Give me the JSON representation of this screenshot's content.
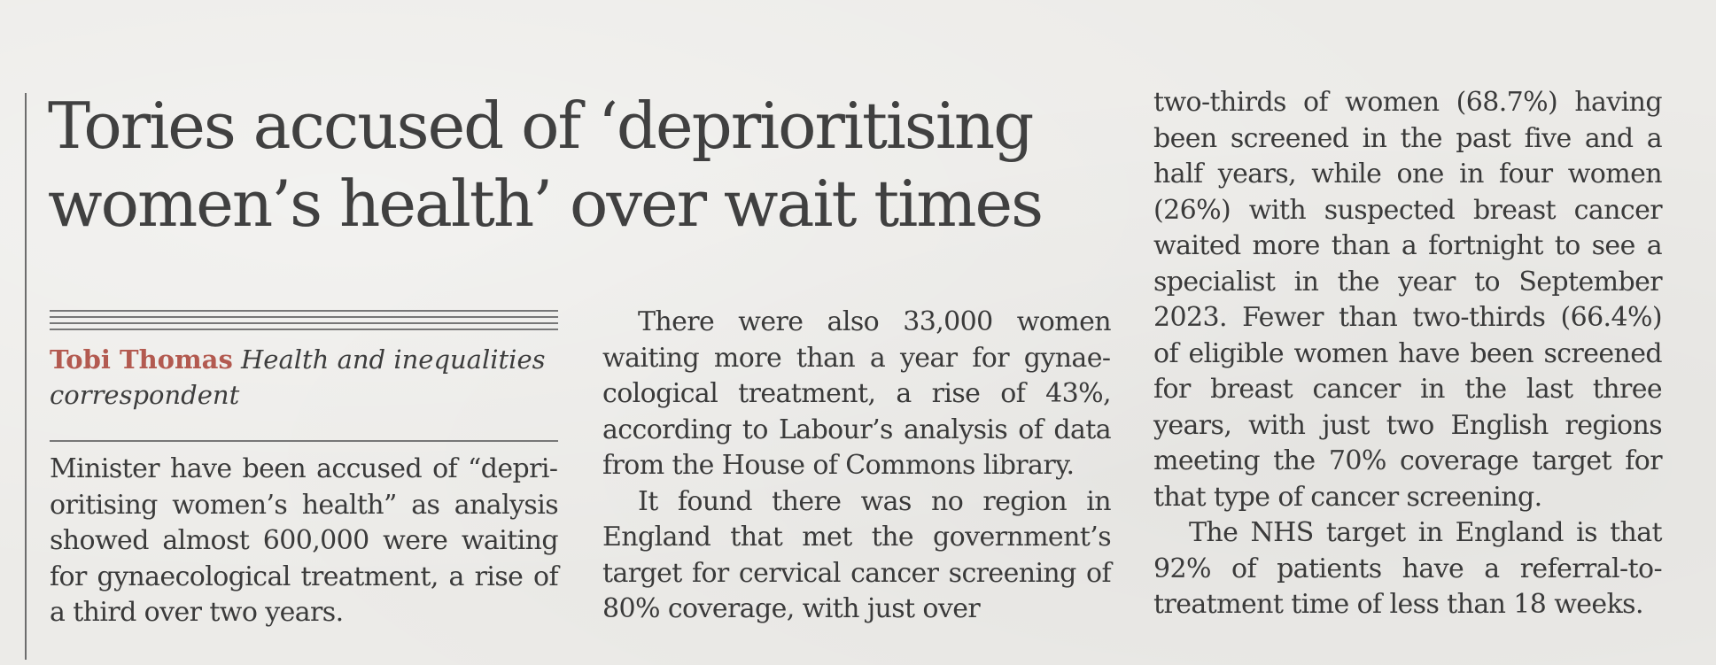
{
  "headline": {
    "line1": "Tories accused of ‘deprioritising",
    "line2": "women’s health’ over wait times"
  },
  "byline": {
    "name": "Tobi Thomas",
    "role": "Health and inequalities correspondent"
  },
  "columns": {
    "col1": {
      "p1": "Minister have been accused of “depri­oritising women’s health” as analysis showed almost 600,000 were waiting for gynaecological treatment, a rise of a third over two years."
    },
    "col2": {
      "p1": "There were also 33,000 women waiting more than a year for gynae­cological treatment, a rise of 43%, according to Labour’s analysis of data from the House of Commons library.",
      "p2": "It found there was no region in England that met the government’s target for cervical cancer screen­ing of 80% coverage, with just over"
    },
    "col3": {
      "p1": "two-thirds of women (68.7%) having been screened in the past five and a half years, while one in four women (26%) with suspected breast cancer waited more than a fortnight to see a specialist in the year to September 2023. Fewer than two-thirds (66.4%) of eligible women have been screened for breast cancer in the last three years, with just two English regions meeting the 70% coverage target for that type of cancer screening.",
      "p2": "The NHS target in England is that 92% of patients have a referral-to-treatment time of less than 18 weeks."
    }
  }
}
